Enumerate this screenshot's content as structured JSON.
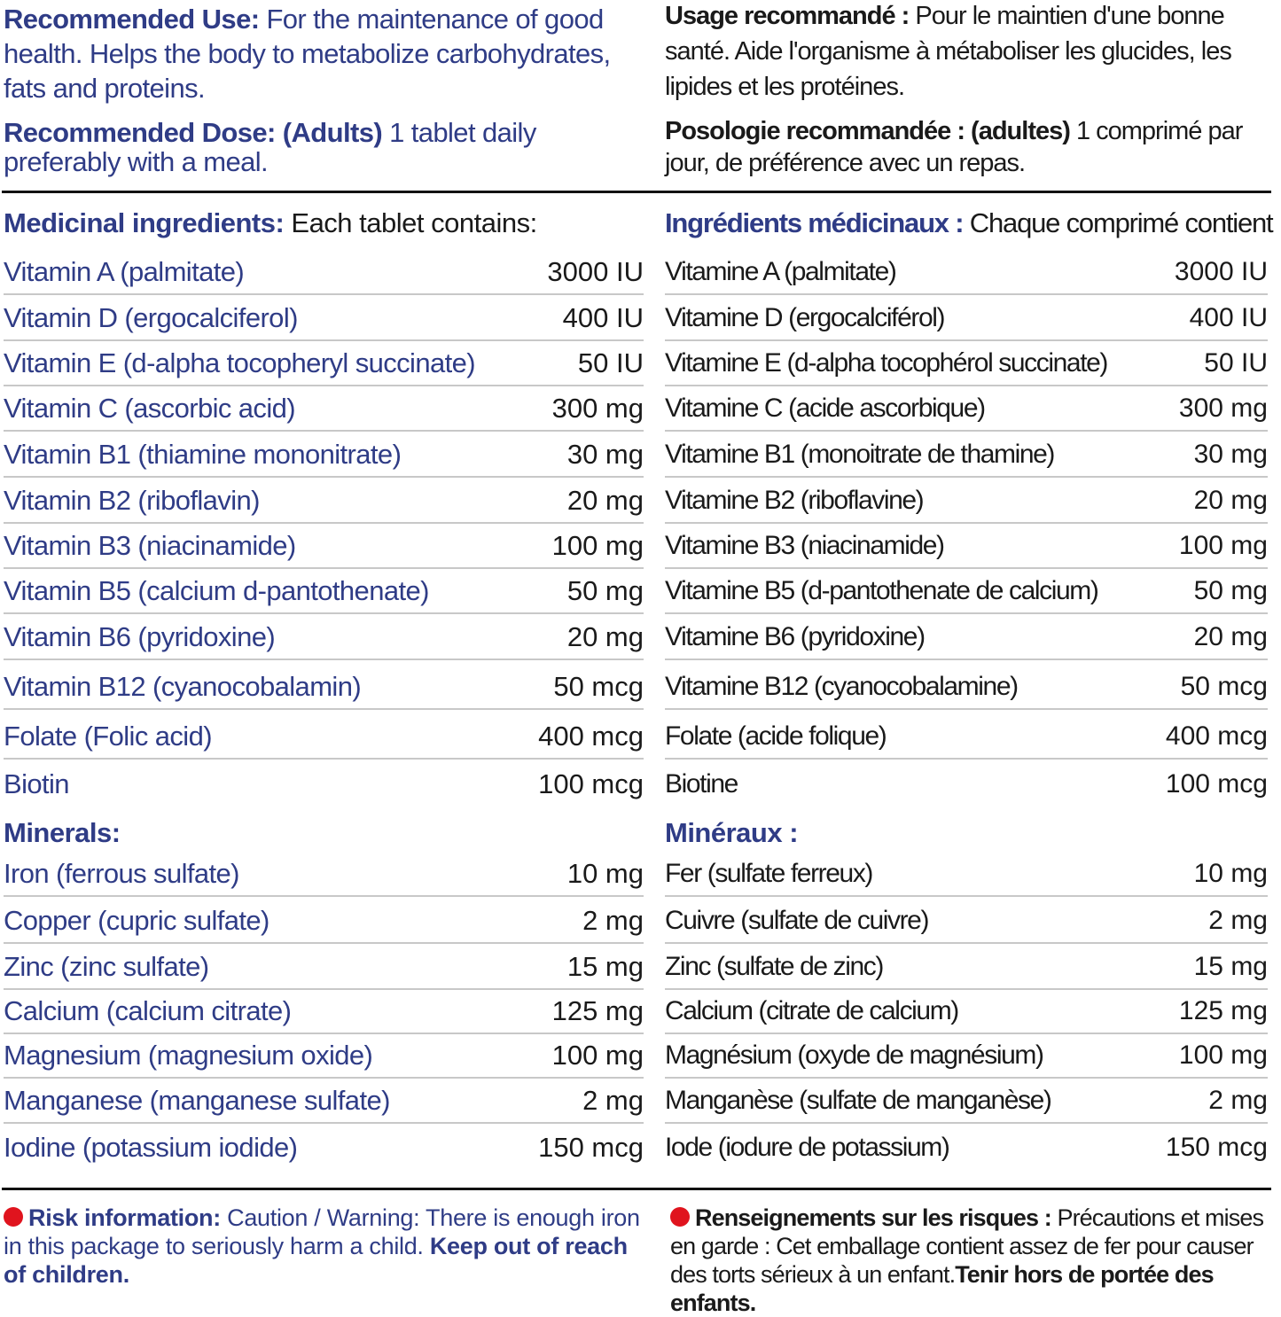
{
  "en": {
    "use_label": "Recommended Use:",
    "use_text": " For the maintenance of good health. Helps the body to metabolize carbohydrates, fats and proteins.",
    "dose_label": "Recommended Dose: (Adults)",
    "dose_text": " 1 tablet daily preferably with a meal.",
    "medicinal_label": "Medicinal ingredients:",
    "medicinal_text": " Each tablet contains:",
    "vitamins": [
      {
        "name": "Vitamin A (palmitate)",
        "amount": "3000 IU"
      },
      {
        "name": "Vitamin D (ergocalciferol)",
        "amount": "400 IU"
      },
      {
        "name": "Vitamin E (d-alpha tocopheryl succinate)",
        "amount": "50 IU"
      },
      {
        "name": "Vitamin C (ascorbic acid)",
        "amount": "300 mg"
      },
      {
        "name": "Vitamin B1 (thiamine mononitrate)",
        "amount": "30 mg"
      },
      {
        "name": "Vitamin B2 (riboflavin)",
        "amount": "20 mg"
      },
      {
        "name": "Vitamin B3 (niacinamide)",
        "amount": "100 mg"
      },
      {
        "name": "Vitamin B5 (calcium d-pantothenate)",
        "amount": "50 mg"
      },
      {
        "name": "Vitamin B6 (pyridoxine)",
        "amount": "20 mg"
      },
      {
        "name": "Vitamin B12 (cyanocobalamin)",
        "amount": "50 mcg"
      },
      {
        "name": "Folate (Folic acid)",
        "amount": "400 mcg"
      },
      {
        "name": "Biotin",
        "amount": "100 mcg"
      }
    ],
    "minerals_label": "Minerals:",
    "minerals": [
      {
        "name": "Iron (ferrous sulfate)",
        "amount": "10 mg"
      },
      {
        "name": "Copper (cupric sulfate)",
        "amount": "2 mg"
      },
      {
        "name": "Zinc (zinc sulfate)",
        "amount": "15 mg"
      },
      {
        "name": "Calcium (calcium citrate)",
        "amount": "125 mg"
      },
      {
        "name": "Magnesium (magnesium oxide)",
        "amount": "100 mg"
      },
      {
        "name": "Manganese (manganese sulfate)",
        "amount": "2 mg"
      },
      {
        "name": "Iodine (potassium iodide)",
        "amount": "150 mcg"
      }
    ],
    "risk_label": "Risk information:",
    "risk_text": " Caution / Warning: There is enough iron in this package to seriously harm a child. ",
    "risk_bold": "Keep out of reach of children."
  },
  "fr": {
    "use_label": "Usage recommandé :",
    "use_text": " Pour le maintien d'une bonne santé. Aide l'organisme à métaboliser les glucides, les lipides et les protéines.",
    "dose_label": "Posologie recommandée : (adultes)",
    "dose_text": " 1 comprimé par jour, de préférence avec un repas.",
    "medicinal_label": "Ingrédients médicinaux :",
    "medicinal_text": " Chaque comprimé contient :",
    "vitamins": [
      {
        "name": "Vitamine A (palmitate)",
        "amount": "3000 IU"
      },
      {
        "name": "Vitamine D (ergocalciférol)",
        "amount": "400 IU"
      },
      {
        "name": "Vitamine E (d-alpha tocophérol succinate)",
        "amount": "50 IU"
      },
      {
        "name": "Vitamine C (acide ascorbique)",
        "amount": "300 mg"
      },
      {
        "name": "Vitamine B1 (monoitrate de thamine)",
        "amount": "30 mg"
      },
      {
        "name": "Vitamine B2 (riboflavine)",
        "amount": "20 mg"
      },
      {
        "name": "Vitamine B3 (niacinamide)",
        "amount": "100 mg"
      },
      {
        "name": "Vitamine B5 (d-pantothenate de calcium)",
        "amount": "50 mg"
      },
      {
        "name": "Vitamine B6 (pyridoxine)",
        "amount": "20 mg"
      },
      {
        "name": "Vitamine B12 (cyanocobalamine)",
        "amount": "50 mcg"
      },
      {
        "name": "Folate (acide folique)",
        "amount": "400 mcg"
      },
      {
        "name": "Biotine",
        "amount": "100 mcg"
      }
    ],
    "minerals_label": "Minéraux :",
    "minerals": [
      {
        "name": "Fer (sulfate ferreux)",
        "amount": "10 mg"
      },
      {
        "name": "Cuivre (sulfate de cuivre)",
        "amount": "2 mg"
      },
      {
        "name": "Zinc (sulfate de zinc)",
        "amount": "15 mg"
      },
      {
        "name": "Calcium (citrate de calcium)",
        "amount": "125 mg"
      },
      {
        "name": "Magnésium (oxyde de magnésium)",
        "amount": "100 mg"
      },
      {
        "name": "Manganèse (sulfate de manganèse)",
        "amount": "2 mg"
      },
      {
        "name": "Iode (iodure de potassium)",
        "amount": "150 mcg"
      }
    ],
    "risk_label": "Renseignements sur les risques :",
    "risk_text": " Précautions et mises en garde : Cet emballage contient assez de fer pour causer des torts sérieux à un enfant.",
    "risk_bold": "Tenir hors de portée des enfants."
  },
  "colors": {
    "english_text": "#2f3c86",
    "french_text": "#1a1a1a",
    "warning_dot": "#e0141e"
  }
}
